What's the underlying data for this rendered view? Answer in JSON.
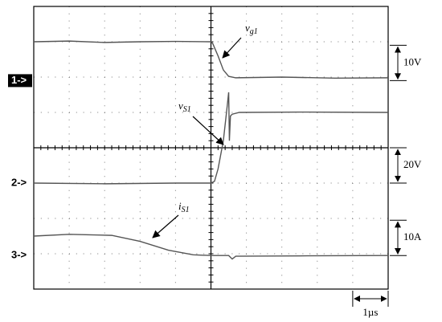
{
  "chart_data": {
    "type": "line",
    "xlim": [
      0,
      10
    ],
    "ylim": [
      0,
      8
    ],
    "xticks": [
      0,
      1,
      2,
      3,
      4,
      5,
      6,
      7,
      8,
      9,
      10
    ],
    "yticks": [
      0,
      1,
      2,
      3,
      4,
      5,
      6,
      7,
      8
    ],
    "grid": true,
    "time_scale": "1µs",
    "series": [
      {
        "color": "#555555",
        "marker": "1->",
        "scale": "10V",
        "ground": 5.9,
        "label": {
          "main": "v",
          "sub": "g1"
        },
        "x": [
          0,
          1,
          2,
          3,
          4,
          5,
          5.05,
          5.2,
          5.35,
          5.5,
          5.7,
          7,
          8.5,
          10
        ],
        "values": [
          7.0,
          7.02,
          6.98,
          7.0,
          7.01,
          7.0,
          6.95,
          6.6,
          6.2,
          6.02,
          5.98,
          6.0,
          5.97,
          5.98
        ]
      },
      {
        "color": "#555555",
        "marker": "2->",
        "scale": "20V",
        "ground": 3.0,
        "label": {
          "main": "v",
          "sub": "S1"
        },
        "x": [
          0,
          2,
          4,
          5.0,
          5.1,
          5.2,
          5.35,
          5.45,
          5.5,
          5.52,
          5.55,
          5.6,
          5.8,
          7.5,
          10
        ],
        "values": [
          3.0,
          2.98,
          3.0,
          3.0,
          3.05,
          3.4,
          4.2,
          5.1,
          5.57,
          4.2,
          4.9,
          4.95,
          5.0,
          5.01,
          5.0
        ]
      },
      {
        "color": "#555555",
        "marker": "3->",
        "scale": "10A",
        "ground": 0.95,
        "label": {
          "main": "i",
          "sub": "S1"
        },
        "x": [
          0,
          1,
          2.2,
          3.0,
          3.8,
          4.5,
          5.0,
          5.5,
          5.6,
          5.7,
          7.5,
          10
        ],
        "values": [
          1.5,
          1.55,
          1.52,
          1.35,
          1.1,
          0.97,
          0.95,
          0.95,
          0.85,
          0.93,
          0.94,
          0.95
        ]
      }
    ]
  }
}
